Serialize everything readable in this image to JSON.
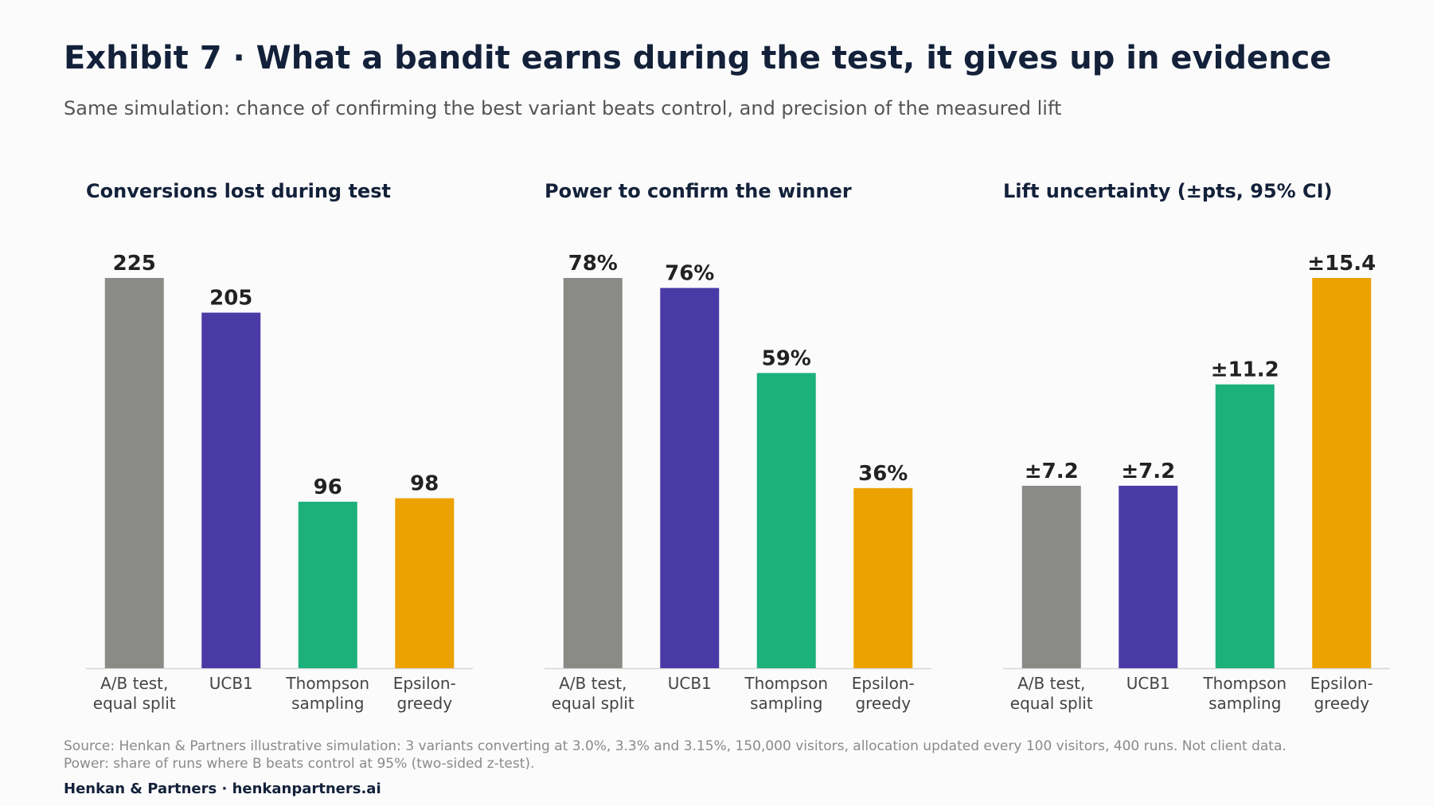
{
  "header": {
    "title": "Exhibit 7 · What a bandit earns during the test, it gives up in evidence",
    "subtitle": "Same simulation: chance of confirming the best variant beats control, and precision of the measured lift"
  },
  "colors": {
    "A/B test, equal split": "#8a8a86",
    "UCB1": "#4a3aa6",
    "Thompson sampling": "#1cb07b",
    "Epsilon-greedy": "#eca200"
  },
  "chart_data": [
    {
      "type": "bar",
      "title": "Conversions lost during test",
      "categories": [
        [
          "A/B test,",
          "equal split"
        ],
        [
          "UCB1"
        ],
        [
          "Thompson",
          "sampling"
        ],
        [
          "Epsilon-",
          "greedy"
        ]
      ],
      "series": [
        {
          "values": [
            225,
            205,
            96,
            98
          ]
        }
      ],
      "labels": [
        "225",
        "205",
        "96",
        "98"
      ],
      "ylim": [
        0,
        225
      ]
    },
    {
      "type": "bar",
      "title": "Power to confirm the winner",
      "categories": [
        [
          "A/B test,",
          "equal split"
        ],
        [
          "UCB1"
        ],
        [
          "Thompson",
          "sampling"
        ],
        [
          "Epsilon-",
          "greedy"
        ]
      ],
      "series": [
        {
          "values": [
            78,
            76,
            59,
            36
          ]
        }
      ],
      "labels": [
        "78%",
        "76%",
        "59%",
        "36%"
      ],
      "ylim": [
        0,
        78
      ]
    },
    {
      "type": "bar",
      "title": "Lift uncertainty (±pts, 95% CI)",
      "categories": [
        [
          "A/B test,",
          "equal split"
        ],
        [
          "UCB1"
        ],
        [
          "Thompson",
          "sampling"
        ],
        [
          "Epsilon-",
          "greedy"
        ]
      ],
      "series": [
        {
          "values": [
            7.2,
            7.2,
            11.2,
            15.4
          ]
        }
      ],
      "labels": [
        "±7.2",
        "±7.2",
        "±11.2",
        "±15.4"
      ],
      "ylim": [
        0,
        15.4
      ]
    }
  ],
  "source": {
    "line1": "Source: Henkan & Partners illustrative simulation: 3 variants converting at 3.0%, 3.3% and 3.15%, 150,000 visitors, allocation updated every 100 visitors, 400 runs. Not client data.",
    "line2": "Power: share of runs where B beats control at 95% (two-sided z-test)."
  },
  "footer": "Henkan & Partners · henkanpartners.ai"
}
